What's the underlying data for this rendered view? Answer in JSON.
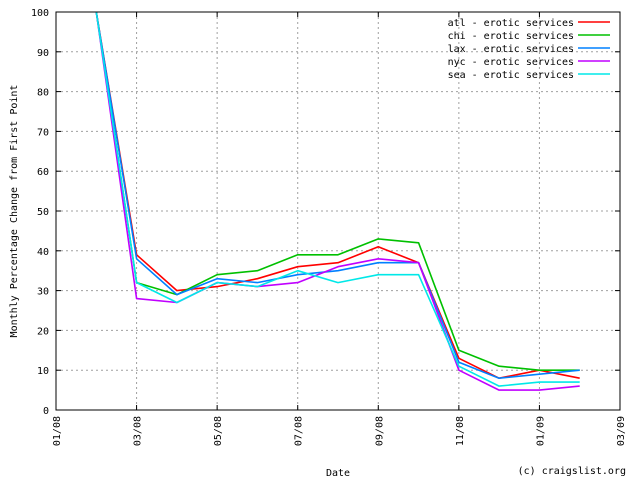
{
  "chart_data": {
    "type": "line",
    "xlabel": "Date",
    "ylabel": "Monthly Percentage Change from First Point",
    "credit": "(c) craigslist.org",
    "x_ticks": [
      "01/08",
      "03/08",
      "05/08",
      "07/08",
      "09/08",
      "11/08",
      "01/09",
      "03/09"
    ],
    "y_ticks": [
      0,
      10,
      20,
      30,
      40,
      50,
      60,
      70,
      80,
      90,
      100
    ],
    "xlim": [
      "01/08",
      "03/09"
    ],
    "ylim": [
      0,
      100
    ],
    "grid": true,
    "legend_position": "top-right",
    "x": [
      "02/08",
      "03/08",
      "04/08",
      "05/08",
      "06/08",
      "07/08",
      "08/08",
      "09/08",
      "10/08",
      "11/08",
      "12/08",
      "01/09",
      "02/09"
    ],
    "series": [
      {
        "name": "atl - erotic services",
        "color": "#ff0000",
        "values": [
          100,
          39,
          30,
          31,
          33,
          36,
          37,
          41,
          37,
          13,
          8,
          10,
          8
        ]
      },
      {
        "name": "chi - erotic services",
        "color": "#00c000",
        "values": [
          100,
          32,
          29,
          34,
          35,
          39,
          39,
          43,
          42,
          15,
          11,
          10,
          10
        ]
      },
      {
        "name": "lax - erotic services",
        "color": "#0080ff",
        "values": [
          100,
          38,
          29,
          33,
          32,
          34,
          35,
          37,
          37,
          12,
          8,
          9,
          10
        ]
      },
      {
        "name": "nyc - erotic services",
        "color": "#c000ff",
        "values": [
          100,
          28,
          27,
          32,
          31,
          32,
          36,
          38,
          37,
          10,
          5,
          5,
          6
        ]
      },
      {
        "name": "sea - erotic services",
        "color": "#00e8e8",
        "values": [
          100,
          32,
          27,
          32,
          31,
          35,
          32,
          34,
          34,
          11,
          6,
          7,
          7
        ]
      }
    ]
  }
}
